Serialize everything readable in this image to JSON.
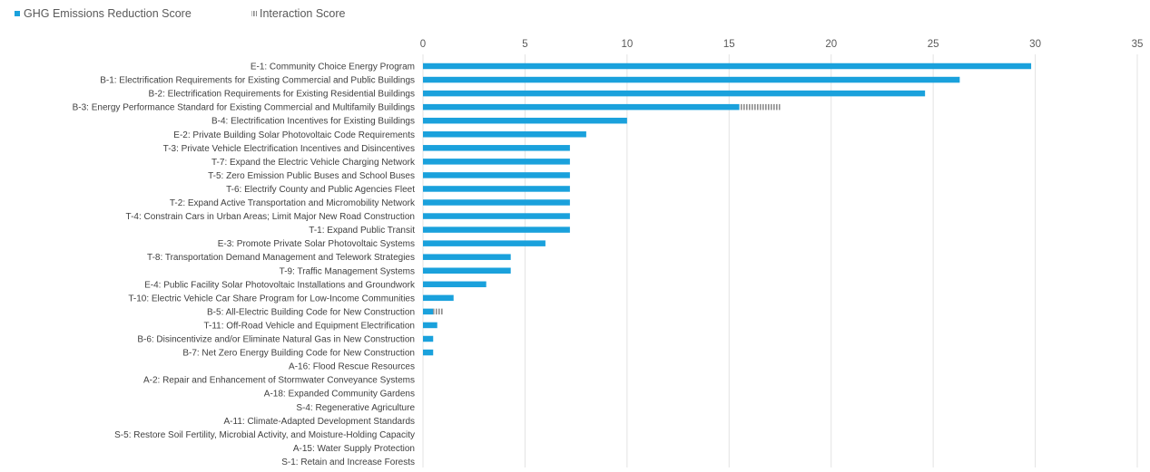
{
  "chart_data": {
    "type": "bar",
    "orientation": "horizontal",
    "stacked": true,
    "legend": {
      "position": "top-left"
    },
    "grid": true,
    "xlim": [
      0,
      35
    ],
    "xticks": [
      0,
      5,
      10,
      15,
      20,
      25,
      30,
      35
    ],
    "categories": [
      "E-1: Community Choice Energy Program",
      "B-1: Electrification Requirements for Existing Commercial and Public Buildings",
      "B-2: Electrification Requirements for Existing Residential Buildings",
      "B-3: Energy Performance Standard for Existing Commercial and Multifamily Buildings",
      "B-4: Electrification Incentives for Existing Buildings",
      "E-2: Private Building Solar Photovoltaic Code Requirements",
      "T-3: Private Vehicle Electrification Incentives and Disincentives",
      "T-7: Expand the Electric Vehicle Charging Network",
      "T-5: Zero Emission Public Buses and School Buses",
      "T-6: Electrify County and Public Agencies Fleet",
      "T-2: Expand Active Transportation and Micromobility Network",
      "T-4: Constrain Cars in Urban Areas; Limit Major New Road Construction",
      "T-1: Expand Public Transit",
      "E-3: Promote Private Solar Photovoltaic Systems",
      "T-8: Transportation Demand Management and Telework Strategies",
      "T-9: Traffic Management Systems",
      "E-4: Public Facility Solar Photovoltaic Installations and Groundwork",
      "T-10: Electric Vehicle Car Share Program for Low-Income Communities",
      "B-5: All-Electric Building Code for New Construction",
      "T-11: Off-Road Vehicle and Equipment Electrification",
      "B-6: Disincentivize and/or Eliminate Natural Gas in New Construction",
      "B-7: Net Zero Energy Building Code for New Construction",
      "A-16: Flood Rescue Resources",
      "A-2: Repair and Enhancement of Stormwater Conveyance Systems",
      "A-18: Expanded Community Gardens",
      "S-4: Regenerative Agriculture",
      "A-11: Climate-Adapted Development Standards",
      "S-5: Restore Soil Fertility, Microbial Activity, and Moisture-Holding Capacity",
      "A-15: Water Supply Protection",
      "S-1: Retain and Increase Forests"
    ],
    "series": [
      {
        "name": "GHG Emissions Reduction Score",
        "color": "#1aa1dc",
        "values": [
          29.8,
          26.3,
          24.6,
          15.5,
          10.0,
          8.0,
          7.2,
          7.2,
          7.2,
          7.2,
          7.2,
          7.2,
          7.2,
          6.0,
          4.3,
          4.3,
          3.1,
          1.5,
          0.5,
          0.7,
          0.5,
          0.5,
          0,
          0,
          0,
          0,
          0,
          0,
          0,
          0
        ]
      },
      {
        "name": "Interaction Score",
        "color": "#a6a6a6",
        "values": [
          0,
          0,
          0,
          2.0,
          0,
          0,
          0,
          0,
          0,
          0,
          0,
          0,
          0,
          0,
          0,
          0,
          0,
          0,
          0.5,
          0,
          0,
          0,
          0,
          0,
          0,
          0,
          0,
          0,
          0,
          0
        ]
      }
    ]
  }
}
